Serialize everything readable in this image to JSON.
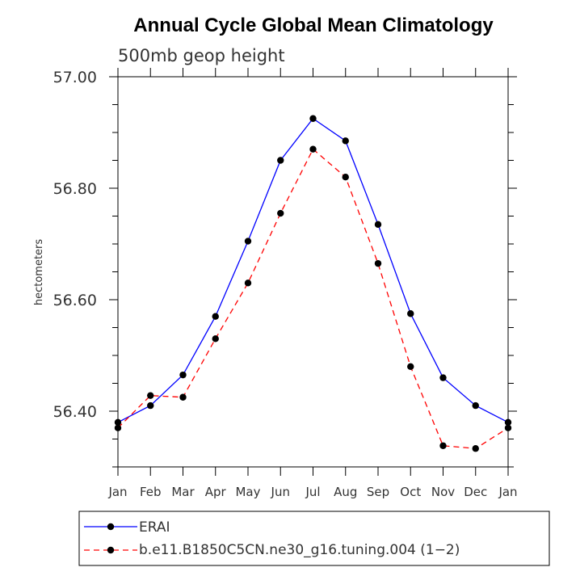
{
  "chart_data": {
    "type": "line",
    "title": "Annual Cycle Global Mean Climatology",
    "subtitle": "500mb geop height",
    "xlabel": "",
    "ylabel": "hectometers",
    "categories": [
      "Jan",
      "Feb",
      "Mar",
      "Apr",
      "May",
      "Jun",
      "Jul",
      "Aug",
      "Sep",
      "Oct",
      "Nov",
      "Dec",
      "Jan"
    ],
    "ylim": [
      56.3,
      57.0
    ],
    "yticks": [
      56.4,
      56.6,
      56.8,
      57.0
    ],
    "ytick_labels": [
      "56.40",
      "56.60",
      "56.80",
      "57.00"
    ],
    "series": [
      {
        "name": "ERAI",
        "color": "#0000ff",
        "dash": "solid",
        "values": [
          56.38,
          56.41,
          56.465,
          56.57,
          56.705,
          56.85,
          56.925,
          56.885,
          56.735,
          56.575,
          56.46,
          56.41,
          56.38
        ]
      },
      {
        "name": "b.e11.B1850C5CN.ne30_g16.tuning.004 (1−2)",
        "color": "#ff0000",
        "dash": "dashed",
        "values": [
          56.37,
          56.428,
          56.425,
          56.53,
          56.63,
          56.755,
          56.87,
          56.82,
          56.665,
          56.48,
          56.338,
          56.333,
          56.37
        ]
      }
    ],
    "legend_position": "bottom-left"
  }
}
